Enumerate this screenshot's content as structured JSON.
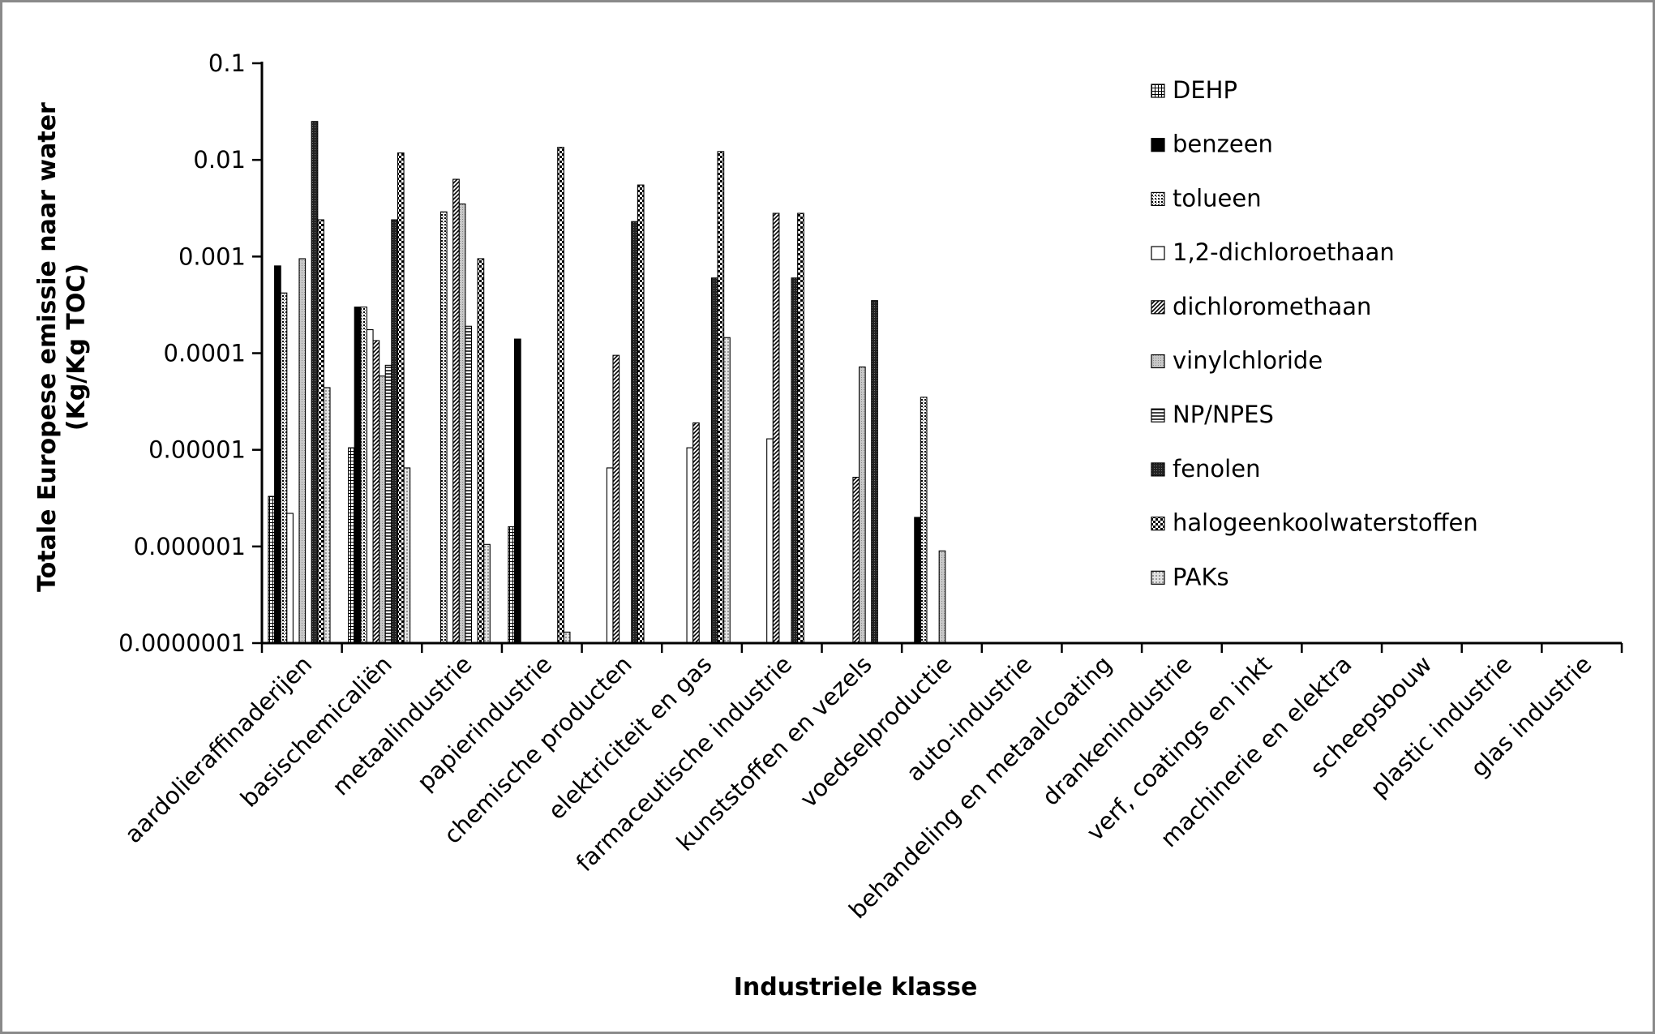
{
  "chart_data": {
    "type": "bar",
    "title": "",
    "xlabel": "Industriele klasse",
    "ylabel": [
      "Totale Europese emissie naar water",
      "(Kg/Kg TOC)"
    ],
    "yscale": "log",
    "ylim": [
      1e-07,
      0.1
    ],
    "yticks": [
      "0.0000001",
      "0.000001",
      "0.00001",
      "0.0001",
      "0.001",
      "0.01",
      "0.1"
    ],
    "grid": false,
    "legend_position": "top-right",
    "categories": [
      "aardolieraffinaderijen",
      "basischemicaliën",
      "metaalindustrie",
      "papierindustrie",
      "chemische producten",
      "elektriciteit en gas",
      "farmaceutische industrie",
      "kunststoffen en vezels",
      "voedselproductie",
      "auto-industrie",
      "behandeling en metaalcoating",
      "drankenindustrie",
      "verf, coatings en inkt",
      "machinerie en elektra",
      "scheepsbouw",
      "plastic industrie",
      "glas industrie"
    ],
    "series": [
      {
        "name": "DEHP",
        "pattern": "grid-fine",
        "values": [
          3.3e-06,
          1.05e-05,
          null,
          1.6e-06,
          null,
          null,
          null,
          null,
          null,
          null,
          null,
          null,
          null,
          null,
          null,
          null,
          null
        ]
      },
      {
        "name": "benzeen",
        "pattern": "solid",
        "values": [
          0.0008,
          0.0003,
          null,
          0.00014,
          null,
          null,
          null,
          null,
          2e-06,
          null,
          null,
          null,
          null,
          null,
          null,
          null,
          null
        ]
      },
      {
        "name": "tolueen",
        "pattern": "dots",
        "values": [
          0.00042,
          0.0003,
          0.0029,
          null,
          null,
          null,
          null,
          null,
          3.5e-05,
          null,
          null,
          null,
          null,
          null,
          null,
          null,
          null
        ]
      },
      {
        "name": "1,2-dichloroethaan",
        "pattern": "white",
        "values": [
          2.2e-06,
          0.000175,
          null,
          null,
          6.5e-06,
          1.05e-05,
          1.3e-05,
          null,
          null,
          null,
          null,
          null,
          null,
          null,
          null,
          null,
          null
        ]
      },
      {
        "name": "dichloromethaan",
        "pattern": "diagonal",
        "values": [
          null,
          0.000135,
          0.0063,
          null,
          9.5e-05,
          1.9e-05,
          0.0028,
          5.2e-06,
          null,
          null,
          null,
          null,
          null,
          null,
          null,
          null,
          null
        ]
      },
      {
        "name": "vinylchloride",
        "pattern": "gray",
        "values": [
          0.00095,
          5.8e-05,
          0.0035,
          null,
          null,
          null,
          null,
          7.2e-05,
          9e-07,
          null,
          null,
          null,
          null,
          null,
          null,
          null,
          null
        ]
      },
      {
        "name": "NP/NPES",
        "pattern": "horizontal",
        "values": [
          null,
          7.5e-05,
          0.00019,
          null,
          null,
          null,
          null,
          null,
          null,
          null,
          null,
          null,
          null,
          null,
          null,
          null,
          null
        ]
      },
      {
        "name": "fenolen",
        "pattern": "dark-dense",
        "values": [
          0.025,
          0.0024,
          null,
          null,
          0.0023,
          0.0006,
          0.0006,
          0.00035,
          null,
          null,
          null,
          null,
          null,
          null,
          null,
          null,
          null
        ]
      },
      {
        "name": "halogeenkoolwaterstoffen",
        "pattern": "checker",
        "values": [
          0.0024,
          0.0118,
          0.00095,
          0.0135,
          0.0055,
          0.0122,
          0.0028,
          null,
          null,
          null,
          null,
          null,
          null,
          null,
          null,
          null,
          null
        ]
      },
      {
        "name": "PAKs",
        "pattern": "gray-dots",
        "values": [
          4.4e-05,
          6.5e-06,
          1.05e-06,
          1.3e-07,
          null,
          0.000145,
          null,
          null,
          null,
          null,
          null,
          null,
          null,
          null,
          null,
          null,
          null
        ]
      }
    ]
  }
}
